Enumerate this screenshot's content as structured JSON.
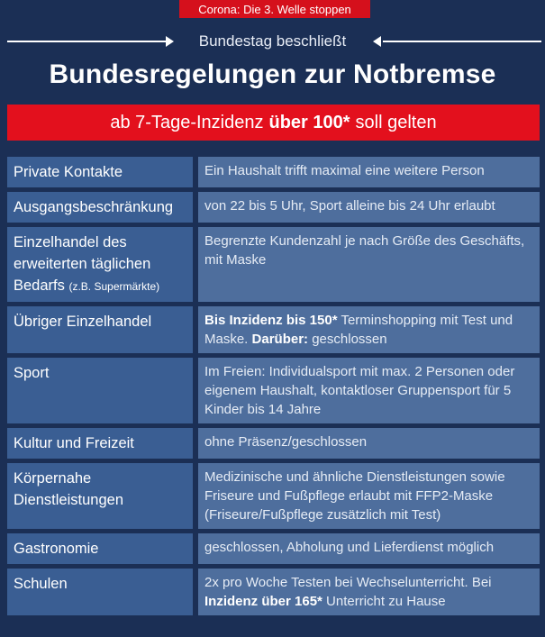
{
  "header": {
    "badge": "Corona: Die 3. Welle stoppen",
    "subtitle": "Bundestag beschließt",
    "title": "Bundesregelungen zur Notbremse"
  },
  "banner": {
    "prefix": "ab 7-Tage-Inzidenz",
    "highlight": "über 100*",
    "suffix": "soll gelten"
  },
  "rows": [
    {
      "label": "Private Kontakte",
      "value": "Ein Haushalt trifft maximal eine weitere Person"
    },
    {
      "label": "Ausgangsbeschränkung",
      "value": "von 22 bis 5 Uhr, Sport alleine bis 24 Uhr erlaubt"
    },
    {
      "label": "Einzelhandel des erweiterten täglichen Bedarfs",
      "label_small": "(z.B. Supermärkte)",
      "value": "Begrenzte Kundenzahl je nach Größe des Geschäfts, mit Maske"
    },
    {
      "label": "Übriger Einzelhandel",
      "value_b1": "Bis Inzidenz bis 150*",
      "value_t1": "Terminshopping mit Test und Maske.",
      "value_b2": "Darüber:",
      "value_t2": "geschlossen"
    },
    {
      "label": "Sport",
      "value": "Im Freien: Individualsport mit max. 2 Personen oder eigenem Haushalt, kontaktloser Gruppensport für 5 Kinder bis 14 Jahre"
    },
    {
      "label": "Kultur und Freizeit",
      "value": "ohne Präsenz/geschlossen"
    },
    {
      "label": "Körpernahe Dienstleistungen",
      "value": "Medizinische und ähnliche Dienstleistungen sowie Friseure und Fußpflege erlaubt mit FFP2-Maske (Friseure/Fußpflege zusätzlich mit Test)"
    },
    {
      "label": "Gastronomie",
      "value": "geschlossen, Abholung und Lieferdienst möglich"
    },
    {
      "label": "Schulen",
      "value_t1": "2x pro Woche Testen bei Wechselunterricht. Bei",
      "value_b1": "Inzidenz über 165*",
      "value_t2": "Unterricht zu Hause"
    }
  ]
}
